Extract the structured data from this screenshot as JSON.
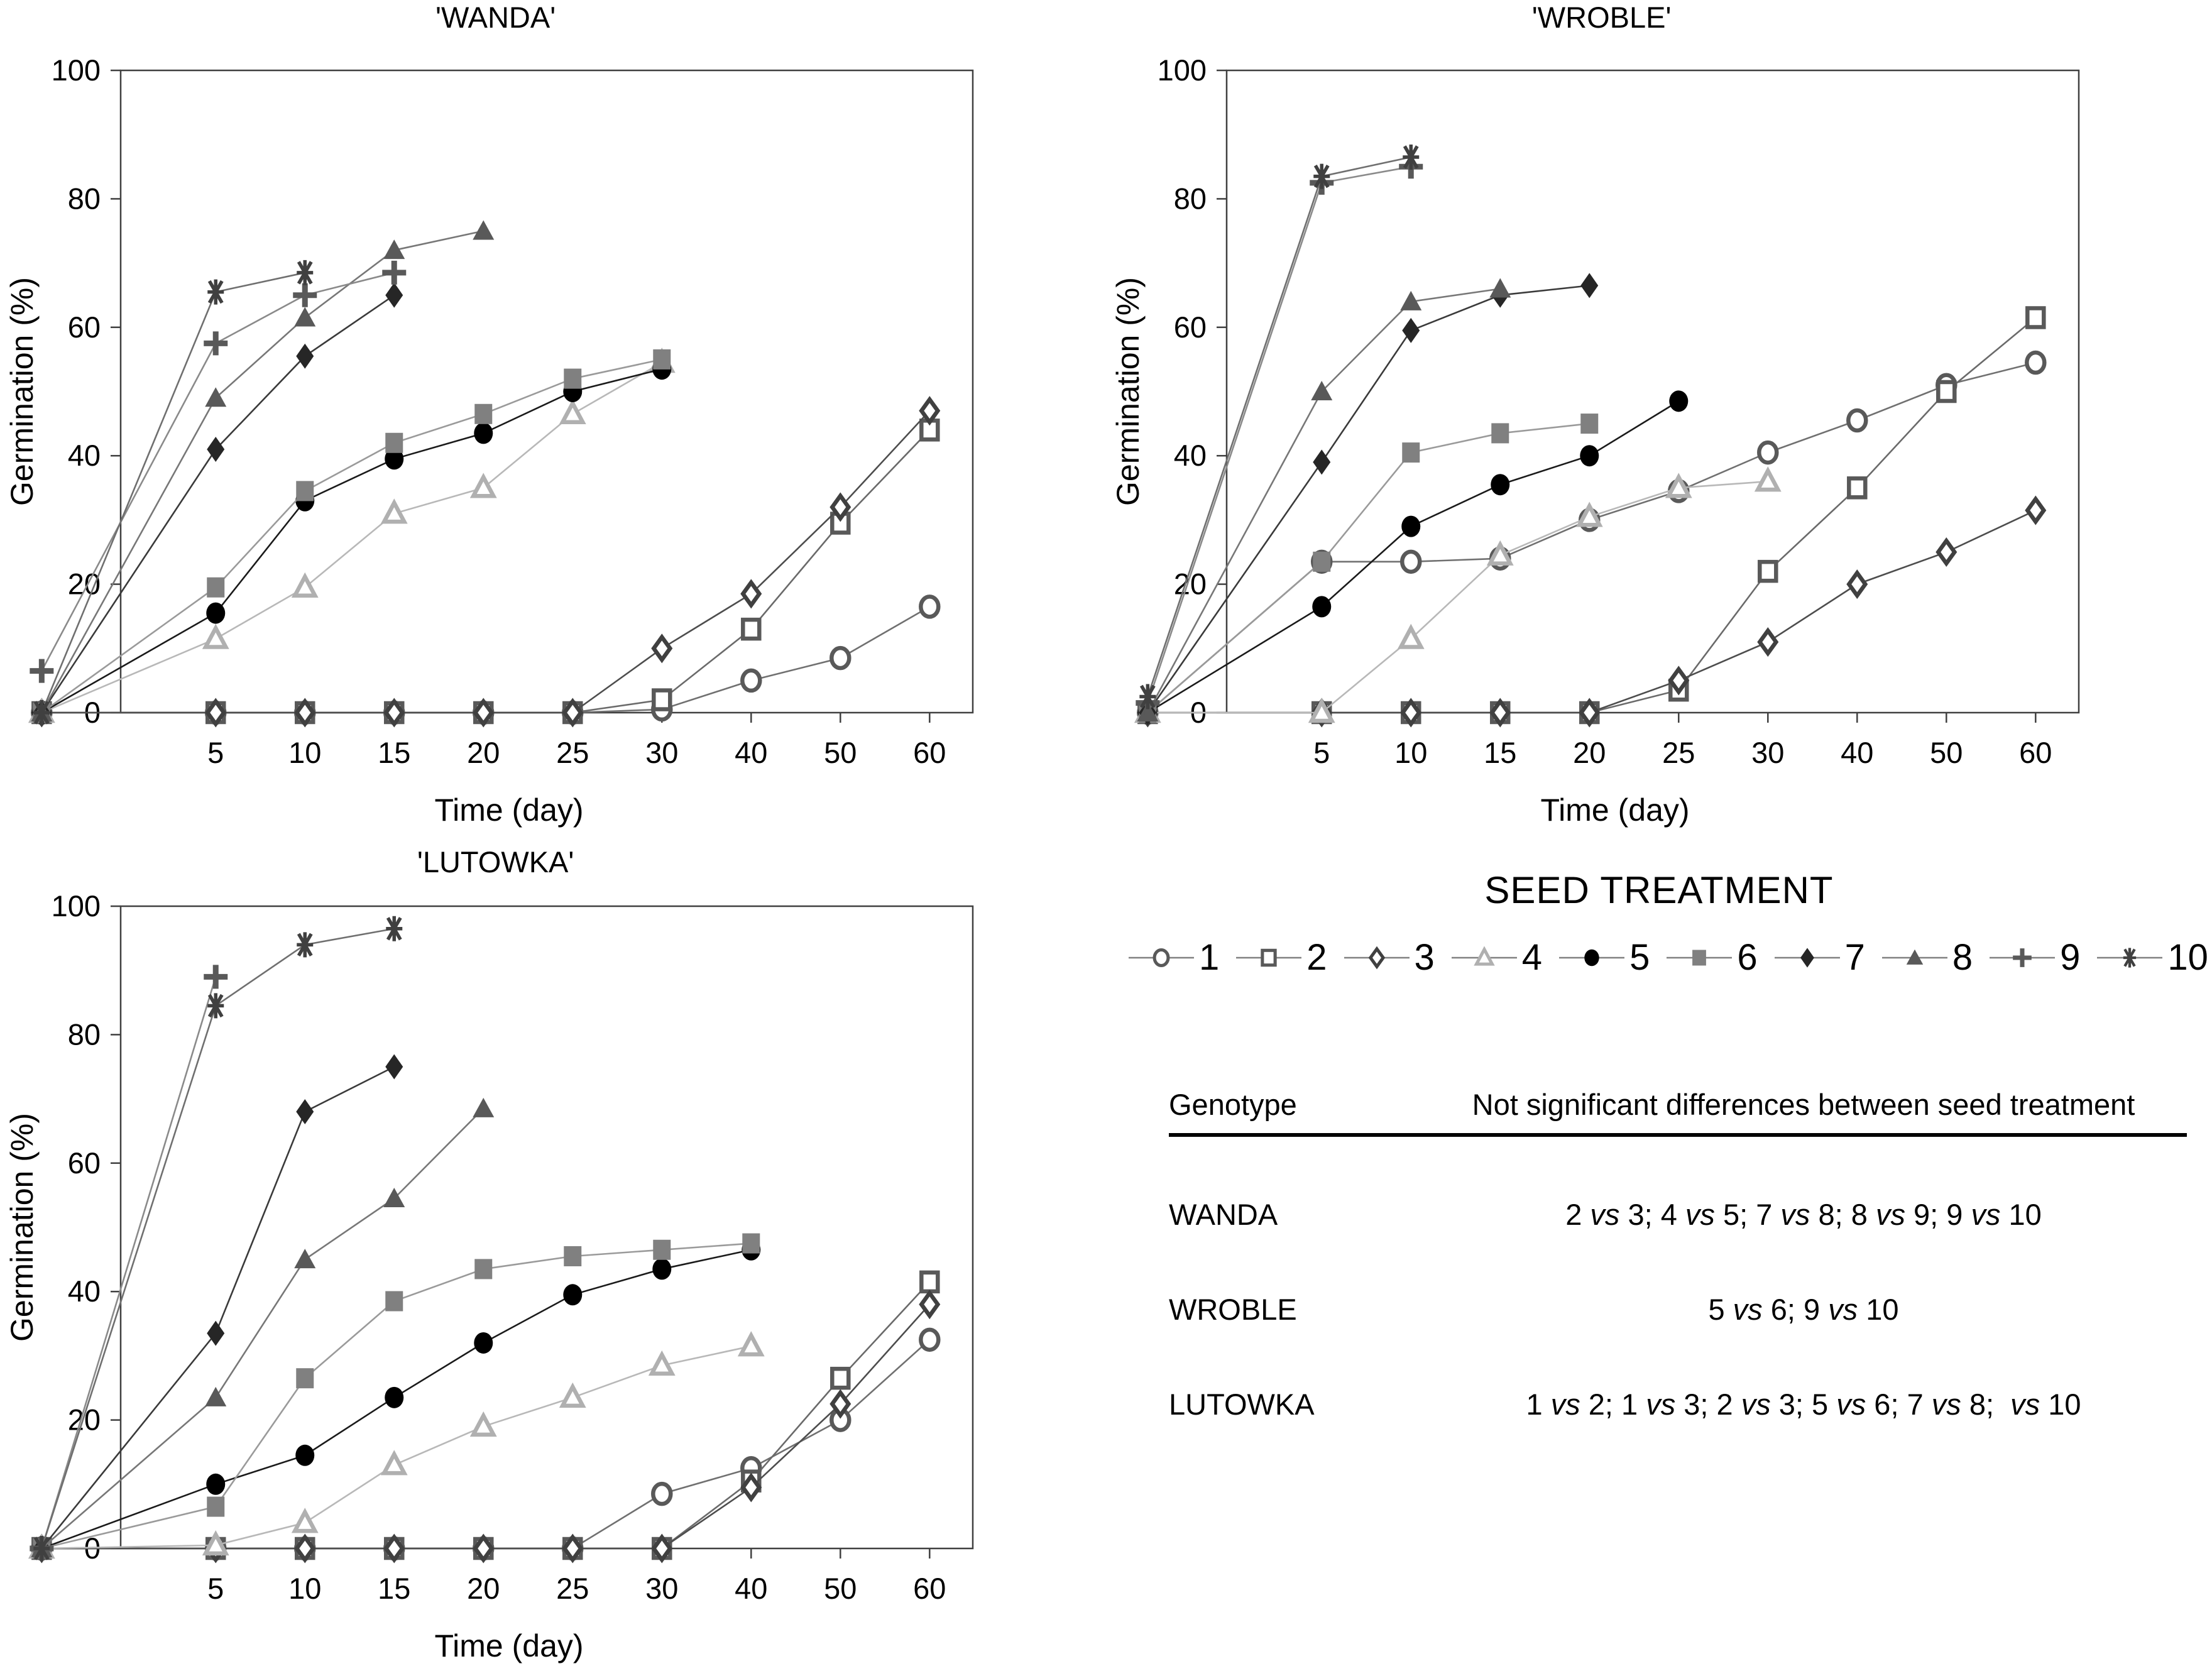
{
  "legend": {
    "title": "SEED TREATMENT",
    "items": [
      {
        "label": "1",
        "marker": "open-circle"
      },
      {
        "label": "2",
        "marker": "open-square"
      },
      {
        "label": "3",
        "marker": "open-diamond"
      },
      {
        "label": "4",
        "marker": "open-triangle"
      },
      {
        "label": "5",
        "marker": "filled-circle"
      },
      {
        "label": "6",
        "marker": "filled-square"
      },
      {
        "label": "7",
        "marker": "filled-diamond"
      },
      {
        "label": "8",
        "marker": "filled-triangle"
      },
      {
        "label": "9",
        "marker": "plus"
      },
      {
        "label": "10",
        "marker": "asterisk"
      }
    ]
  },
  "table": {
    "headers": [
      "Genotype",
      "Not significant differences between seed treatment"
    ],
    "rows": [
      {
        "genotype": "WANDA",
        "value": "2 vs 3; 4 vs 5; 7 vs 8; 8 vs 9; 9 vs 10"
      },
      {
        "genotype": "WROBLE",
        "value": "5 vs 6; 9 vs 10"
      },
      {
        "genotype": "LUTOWKA",
        "value": "1 vs 2; 1 vs 3; 2 vs 3; 5 vs 6; 7 vs 8;  vs 10"
      }
    ]
  },
  "colors": {
    "axis": "#404040",
    "legend_line": "#808080",
    "marker": {
      "open-circle": "#595959",
      "open-square": "#595959",
      "open-diamond": "#404040",
      "open-triangle": "#b0b0b0",
      "filled-circle": "#000000",
      "filled-square": "#808080",
      "filled-diamond": "#262626",
      "filled-triangle": "#595959",
      "plus": "#595959",
      "asterisk": "#404040"
    },
    "line": {
      "open-circle": "#707070",
      "open-square": "#6a6a6a",
      "open-diamond": "#4d4d4d",
      "open-triangle": "#b8b8b8",
      "filled-circle": "#1a1a1a",
      "filled-square": "#9a9a9a",
      "filled-diamond": "#3a3a3a",
      "filled-triangle": "#777777",
      "plus": "#8a8a8a",
      "asterisk": "#6f6f6f"
    }
  },
  "chart_data": [
    {
      "type": "line",
      "id": "wanda",
      "title": "'WANDA'",
      "xlabel": "Time (day)",
      "ylabel": "Germination (%)",
      "x_ticks": [
        5,
        10,
        15,
        20,
        25,
        30,
        40,
        50,
        60
      ],
      "y_ticks": [
        0,
        20,
        40,
        60,
        80,
        100
      ],
      "ylim": [
        0,
        100
      ],
      "grid": false,
      "series": [
        {
          "name": "1",
          "marker": "open-circle",
          "points": [
            [
              1,
              0
            ],
            [
              5,
              0
            ],
            [
              10,
              0
            ],
            [
              15,
              0
            ],
            [
              20,
              0
            ],
            [
              25,
              0
            ],
            [
              30,
              0.5
            ],
            [
              40,
              5
            ],
            [
              50,
              8.5
            ],
            [
              60,
              16.5
            ]
          ]
        },
        {
          "name": "2",
          "marker": "open-square",
          "points": [
            [
              1,
              0
            ],
            [
              5,
              0
            ],
            [
              10,
              0
            ],
            [
              15,
              0
            ],
            [
              20,
              0
            ],
            [
              25,
              0
            ],
            [
              30,
              2
            ],
            [
              40,
              13
            ],
            [
              50,
              29.5
            ],
            [
              60,
              44
            ]
          ]
        },
        {
          "name": "3",
          "marker": "open-diamond",
          "points": [
            [
              1,
              0
            ],
            [
              5,
              0
            ],
            [
              10,
              0
            ],
            [
              15,
              0
            ],
            [
              20,
              0
            ],
            [
              25,
              0
            ],
            [
              30,
              10
            ],
            [
              40,
              18.5
            ],
            [
              50,
              32
            ],
            [
              60,
              47
            ]
          ]
        },
        {
          "name": "4",
          "marker": "open-triangle",
          "points": [
            [
              1,
              0
            ],
            [
              5,
              11.5
            ],
            [
              10,
              19.5
            ],
            [
              15,
              31
            ],
            [
              20,
              35
            ],
            [
              25,
              46.5
            ],
            [
              30,
              54.5
            ]
          ]
        },
        {
          "name": "5",
          "marker": "filled-circle",
          "points": [
            [
              1,
              0
            ],
            [
              5,
              15.5
            ],
            [
              10,
              33
            ],
            [
              15,
              39.5
            ],
            [
              20,
              43.5
            ],
            [
              25,
              50
            ],
            [
              30,
              53.5
            ]
          ]
        },
        {
          "name": "6",
          "marker": "filled-square",
          "points": [
            [
              1,
              0
            ],
            [
              5,
              19.5
            ],
            [
              10,
              34.5
            ],
            [
              15,
              42
            ],
            [
              20,
              46.5
            ],
            [
              25,
              52
            ],
            [
              30,
              55
            ]
          ]
        },
        {
          "name": "7",
          "marker": "filled-diamond",
          "points": [
            [
              1,
              0
            ],
            [
              5,
              41
            ],
            [
              10,
              55.5
            ],
            [
              15,
              65
            ]
          ]
        },
        {
          "name": "8",
          "marker": "filled-triangle",
          "points": [
            [
              1,
              0
            ],
            [
              5,
              49
            ],
            [
              10,
              61.5
            ],
            [
              15,
              72
            ],
            [
              20,
              75
            ]
          ]
        },
        {
          "name": "9",
          "marker": "plus",
          "points": [
            [
              1,
              6.5
            ],
            [
              5,
              57.5
            ],
            [
              10,
              65
            ],
            [
              15,
              68.5
            ]
          ]
        },
        {
          "name": "10",
          "marker": "asterisk",
          "points": [
            [
              1,
              0
            ],
            [
              5,
              65.5
            ],
            [
              10,
              68.5
            ]
          ]
        }
      ]
    },
    {
      "type": "line",
      "id": "wroble",
      "title": "'WROBLE'",
      "xlabel": "Time (day)",
      "ylabel": "Germination (%)",
      "x_ticks": [
        5,
        10,
        15,
        20,
        25,
        30,
        40,
        50,
        60
      ],
      "y_ticks": [
        0,
        20,
        40,
        60,
        80,
        100
      ],
      "ylim": [
        0,
        100
      ],
      "grid": false,
      "series": [
        {
          "name": "1",
          "marker": "open-circle",
          "points": [
            [
              1,
              0
            ],
            [
              5,
              23.5
            ],
            [
              10,
              23.5
            ],
            [
              15,
              24
            ],
            [
              20,
              30
            ],
            [
              25,
              34.5
            ],
            [
              30,
              40.5
            ],
            [
              40,
              45.5
            ],
            [
              50,
              51
            ],
            [
              60,
              54.5
            ]
          ]
        },
        {
          "name": "2",
          "marker": "open-square",
          "points": [
            [
              1,
              0
            ],
            [
              5,
              0
            ],
            [
              10,
              0
            ],
            [
              15,
              0
            ],
            [
              20,
              0
            ],
            [
              25,
              3.5
            ],
            [
              30,
              22
            ],
            [
              40,
              35
            ],
            [
              50,
              50
            ],
            [
              60,
              61.5
            ]
          ]
        },
        {
          "name": "3",
          "marker": "open-diamond",
          "points": [
            [
              1,
              0
            ],
            [
              5,
              0
            ],
            [
              10,
              0
            ],
            [
              15,
              0
            ],
            [
              20,
              0
            ],
            [
              25,
              5
            ],
            [
              30,
              11
            ],
            [
              40,
              20
            ],
            [
              50,
              25
            ],
            [
              60,
              31.5
            ]
          ]
        },
        {
          "name": "4",
          "marker": "open-triangle",
          "points": [
            [
              1,
              0
            ],
            [
              5,
              0
            ],
            [
              10,
              11.5
            ],
            [
              15,
              24.5
            ],
            [
              20,
              30.5
            ],
            [
              25,
              35
            ],
            [
              30,
              36
            ]
          ]
        },
        {
          "name": "5",
          "marker": "filled-circle",
          "points": [
            [
              1,
              0
            ],
            [
              5,
              16.5
            ],
            [
              10,
              29
            ],
            [
              15,
              35.5
            ],
            [
              20,
              40
            ],
            [
              25,
              48.5
            ]
          ]
        },
        {
          "name": "6",
          "marker": "filled-square",
          "points": [
            [
              1,
              0
            ],
            [
              5,
              23.5
            ],
            [
              10,
              40.5
            ],
            [
              15,
              43.5
            ],
            [
              20,
              45
            ]
          ]
        },
        {
          "name": "7",
          "marker": "filled-diamond",
          "points": [
            [
              1,
              0
            ],
            [
              5,
              39
            ],
            [
              10,
              59.5
            ],
            [
              15,
              65
            ],
            [
              20,
              66.5
            ]
          ]
        },
        {
          "name": "8",
          "marker": "filled-triangle",
          "points": [
            [
              1,
              0
            ],
            [
              5,
              50
            ],
            [
              10,
              64
            ],
            [
              15,
              66
            ]
          ]
        },
        {
          "name": "9",
          "marker": "plus",
          "points": [
            [
              1,
              1.5
            ],
            [
              5,
              82.5
            ],
            [
              10,
              85
            ]
          ]
        },
        {
          "name": "10",
          "marker": "asterisk",
          "points": [
            [
              1,
              2.5
            ],
            [
              5,
              83.5
            ],
            [
              10,
              86.5
            ]
          ]
        }
      ]
    },
    {
      "type": "line",
      "id": "lutowka",
      "title": "'LUTOWKA'",
      "xlabel": "Time (day)",
      "ylabel": "Germination (%)",
      "x_ticks": [
        5,
        10,
        15,
        20,
        25,
        30,
        40,
        50,
        60
      ],
      "y_ticks": [
        0,
        20,
        40,
        60,
        80,
        100
      ],
      "ylim": [
        0,
        100
      ],
      "grid": false,
      "series": [
        {
          "name": "1",
          "marker": "open-circle",
          "points": [
            [
              1,
              0
            ],
            [
              5,
              0
            ],
            [
              10,
              0
            ],
            [
              15,
              0
            ],
            [
              20,
              0
            ],
            [
              25,
              0
            ],
            [
              30,
              8.5
            ],
            [
              40,
              12.5
            ],
            [
              50,
              20
            ],
            [
              60,
              32.5
            ]
          ]
        },
        {
          "name": "2",
          "marker": "open-square",
          "points": [
            [
              1,
              0
            ],
            [
              5,
              0
            ],
            [
              10,
              0
            ],
            [
              15,
              0
            ],
            [
              20,
              0
            ],
            [
              25,
              0
            ],
            [
              30,
              0
            ],
            [
              40,
              10.5
            ],
            [
              50,
              26.5
            ],
            [
              60,
              41.5
            ]
          ]
        },
        {
          "name": "3",
          "marker": "open-diamond",
          "points": [
            [
              1,
              0
            ],
            [
              5,
              0
            ],
            [
              10,
              0
            ],
            [
              15,
              0
            ],
            [
              20,
              0
            ],
            [
              25,
              0
            ],
            [
              30,
              0
            ],
            [
              40,
              9.5
            ],
            [
              50,
              22.5
            ],
            [
              60,
              38
            ]
          ]
        },
        {
          "name": "4",
          "marker": "open-triangle",
          "points": [
            [
              1,
              0
            ],
            [
              5,
              0.5
            ],
            [
              10,
              4
            ],
            [
              15,
              13
            ],
            [
              20,
              19
            ],
            [
              25,
              23.5
            ],
            [
              30,
              28.5
            ],
            [
              40,
              31.5
            ]
          ]
        },
        {
          "name": "5",
          "marker": "filled-circle",
          "points": [
            [
              1,
              0
            ],
            [
              5,
              10
            ],
            [
              10,
              14.5
            ],
            [
              15,
              23.5
            ],
            [
              20,
              32
            ],
            [
              25,
              39.5
            ],
            [
              30,
              43.5
            ],
            [
              40,
              46.5
            ]
          ]
        },
        {
          "name": "6",
          "marker": "filled-square",
          "points": [
            [
              1,
              0
            ],
            [
              5,
              6.5
            ],
            [
              10,
              26.5
            ],
            [
              15,
              38.5
            ],
            [
              20,
              43.5
            ],
            [
              25,
              45.5
            ],
            [
              30,
              46.5
            ],
            [
              40,
              47.5
            ]
          ]
        },
        {
          "name": "7",
          "marker": "filled-diamond",
          "points": [
            [
              1,
              0
            ],
            [
              5,
              33.5
            ],
            [
              10,
              68
            ],
            [
              15,
              75
            ]
          ]
        },
        {
          "name": "8",
          "marker": "filled-triangle",
          "points": [
            [
              1,
              0
            ],
            [
              5,
              23.5
            ],
            [
              10,
              45
            ],
            [
              15,
              54.5
            ],
            [
              20,
              68.5
            ]
          ]
        },
        {
          "name": "9",
          "marker": "plus",
          "points": [
            [
              1,
              0
            ],
            [
              5,
              89
            ]
          ]
        },
        {
          "name": "10",
          "marker": "asterisk",
          "points": [
            [
              1,
              0
            ],
            [
              5,
              84.5
            ],
            [
              10,
              94
            ],
            [
              15,
              96.5
            ]
          ]
        }
      ]
    }
  ]
}
